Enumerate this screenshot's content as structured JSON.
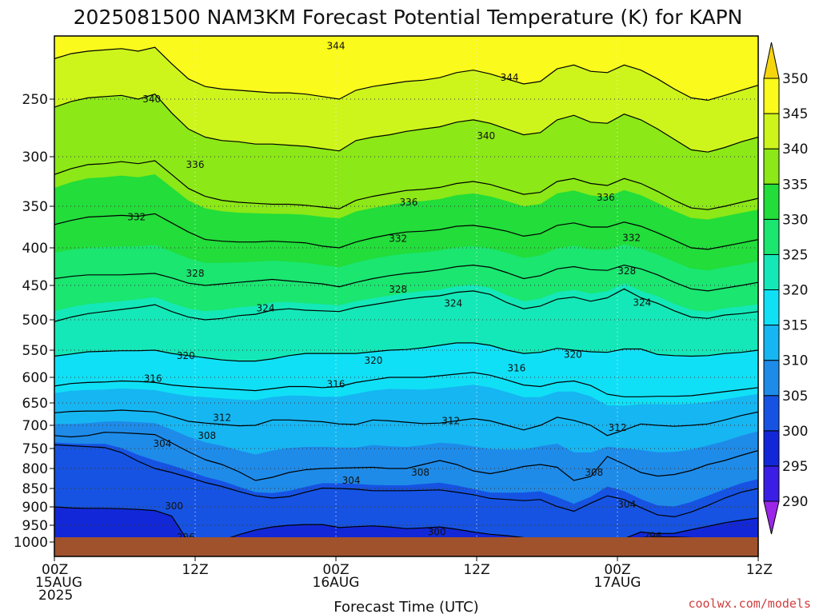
{
  "chart_data": {
    "type": "heatmap",
    "title": "2025081500 NAM3KM Forecast Potential Temperature (K) for KAPN",
    "xlabel": "Forecast Time (UTC)",
    "ylabel": "",
    "y_axis": "pressure (hPa), inverted",
    "ylim": [
      1000,
      200
    ],
    "xlim_hours": [
      0,
      60
    ],
    "grid": "dotted",
    "y_ticks": [
      250,
      300,
      350,
      400,
      450,
      500,
      550,
      600,
      650,
      700,
      750,
      800,
      850,
      900,
      950,
      1000
    ],
    "x_ticks": [
      {
        "hour": 0,
        "label": "00Z",
        "sub1": "15AUG",
        "sub2": "2025"
      },
      {
        "hour": 12,
        "label": "12Z",
        "sub1": "",
        "sub2": ""
      },
      {
        "hour": 24,
        "label": "00Z",
        "sub1": "16AUG",
        "sub2": ""
      },
      {
        "hour": 36,
        "label": "12Z",
        "sub1": "",
        "sub2": ""
      },
      {
        "hour": 48,
        "label": "00Z",
        "sub1": "17AUG",
        "sub2": ""
      },
      {
        "hour": 60,
        "label": "12Z",
        "sub1": "",
        "sub2": ""
      }
    ],
    "colorbar": {
      "levels": [
        290,
        295,
        300,
        305,
        310,
        315,
        320,
        325,
        330,
        335,
        340,
        345,
        350
      ],
      "colors": [
        "#9b26e8",
        "#3a1ee6",
        "#1228d8",
        "#1653e3",
        "#1e8be9",
        "#16b6f2",
        "#10e0f6",
        "#14e8b8",
        "#1ae670",
        "#22dd3a",
        "#8ce816",
        "#cdf51c",
        "#fafa1c",
        "#f5d60e"
      ]
    },
    "ground_color": "#a0522d",
    "isentropes": [
      {
        "theta": 296,
        "p": [
          990,
          991,
          990,
          990,
          993,
          996,
          1000,
          1000,
          996,
          993,
          992,
          995,
          994,
          1000,
          1000,
          1000,
          1000,
          1000,
          1000,
          1000,
          1000,
          1000,
          1000,
          1000,
          1000,
          1000,
          1000,
          1000,
          1000,
          1000,
          1000,
          1000,
          1000,
          1000,
          992,
          987,
          985,
          985,
          987,
          989,
          990,
          990,
          990
        ]
      },
      {
        "theta": 300,
        "p": [
          900,
          903,
          904,
          904,
          905,
          907,
          910,
          925,
          1000,
          1000,
          995,
          978,
          964,
          955,
          950,
          948,
          948,
          957,
          954,
          952,
          955,
          960,
          958,
          955,
          962,
          970,
          977,
          981,
          987,
          1000,
          1000,
          1000,
          1000,
          1000,
          990,
          970,
          975,
          974,
          963,
          953,
          943,
          936,
          930
        ]
      },
      {
        "theta": 304,
        "p": [
          742,
          744,
          746,
          748,
          760,
          782,
          800,
          810,
          822,
          835,
          845,
          858,
          870,
          876,
          872,
          860,
          849,
          850,
          852,
          856,
          856,
          856,
          855,
          854,
          860,
          867,
          877,
          880,
          883,
          880,
          899,
          912,
          890,
          870,
          880,
          902,
          922,
          927,
          914,
          896,
          876,
          860,
          850
        ]
      },
      {
        "theta": 308,
        "p": [
          722,
          725,
          722,
          715,
          716,
          718,
          720,
          738,
          758,
          778,
          790,
          808,
          830,
          822,
          810,
          803,
          800,
          799,
          798,
          797,
          800,
          800,
          790,
          780,
          790,
          806,
          813,
          805,
          795,
          790,
          797,
          830,
          820,
          770,
          789,
          810,
          819,
          815,
          805,
          790,
          780,
          767,
          755
        ]
      },
      {
        "theta": 312,
        "p": [
          672,
          669,
          668,
          668,
          666,
          668,
          670,
          680,
          691,
          695,
          698,
          701,
          700,
          688,
          688,
          690,
          692,
          697,
          698,
          688,
          690,
          693,
          696,
          695,
          690,
          685,
          690,
          700,
          710,
          700,
          682,
          689,
          700,
          722,
          710,
          697,
          700,
          702,
          700,
          697,
          688,
          678,
          670
        ]
      },
      {
        "theta": 316,
        "p": [
          617,
          612,
          610,
          609,
          607,
          608,
          610,
          615,
          618,
          620,
          622,
          624,
          626,
          622,
          618,
          618,
          620,
          618,
          610,
          605,
          600,
          600,
          600,
          597,
          594,
          591,
          596,
          605,
          615,
          618,
          610,
          607,
          616,
          633,
          638,
          638,
          637,
          637,
          636,
          632,
          628,
          624,
          620
        ]
      },
      {
        "theta": 320,
        "p": [
          561,
          557,
          553,
          552,
          551,
          551,
          550,
          556,
          560,
          564,
          568,
          570,
          570,
          566,
          560,
          556,
          556,
          556,
          556,
          553,
          550,
          549,
          546,
          542,
          538,
          538,
          542,
          550,
          556,
          554,
          547,
          550,
          553,
          554,
          548,
          548,
          558,
          560,
          561,
          560,
          556,
          554,
          550
        ]
      },
      {
        "theta": 324,
        "p": [
          503,
          496,
          491,
          488,
          485,
          482,
          478,
          488,
          496,
          500,
          498,
          494,
          492,
          486,
          484,
          486,
          487,
          488,
          482,
          478,
          474,
          470,
          467,
          465,
          460,
          458,
          463,
          475,
          484,
          480,
          470,
          467,
          473,
          468,
          455,
          468,
          476,
          487,
          496,
          498,
          493,
          491,
          488
        ]
      },
      {
        "theta": 328,
        "p": [
          441,
          438,
          436,
          436,
          436,
          435,
          434,
          440,
          447,
          450,
          448,
          446,
          444,
          442,
          444,
          446,
          448,
          452,
          446,
          441,
          437,
          434,
          432,
          429,
          425,
          423,
          426,
          433,
          441,
          437,
          428,
          425,
          429,
          430,
          423,
          428,
          436,
          446,
          455,
          458,
          454,
          450,
          446
        ]
      },
      {
        "theta": 332,
        "p": [
          372,
          367,
          363,
          362,
          361,
          362,
          359,
          370,
          381,
          390,
          392,
          393,
          393,
          392,
          393,
          394,
          398,
          400,
          393,
          388,
          384,
          381,
          380,
          378,
          374,
          373,
          376,
          380,
          386,
          383,
          373,
          370,
          375,
          375,
          369,
          374,
          382,
          391,
          400,
          402,
          398,
          394,
          390
        ]
      },
      {
        "theta": 336,
        "p": [
          318,
          312,
          308,
          307,
          305,
          307,
          304,
          318,
          332,
          340,
          344,
          346,
          347,
          348,
          348,
          349,
          351,
          353,
          344,
          340,
          337,
          334,
          333,
          331,
          327,
          325,
          328,
          333,
          338,
          336,
          325,
          322,
          327,
          329,
          322,
          327,
          335,
          344,
          352,
          354,
          350,
          346,
          342
        ]
      },
      {
        "theta": 340,
        "p": [
          257,
          252,
          249,
          248,
          247,
          250,
          246,
          262,
          276,
          283,
          286,
          287,
          289,
          289,
          290,
          291,
          293,
          295,
          286,
          283,
          281,
          278,
          276,
          274,
          270,
          268,
          271,
          276,
          281,
          279,
          268,
          264,
          270,
          271,
          263,
          268,
          276,
          285,
          294,
          296,
          292,
          287,
          283
        ]
      },
      {
        "theta": 344,
        "p": [
          218,
          214,
          212,
          211,
          210,
          212,
          209,
          222,
          234,
          240,
          242,
          243,
          244,
          245,
          245,
          246,
          248,
          250,
          243,
          240,
          238,
          236,
          235,
          233,
          229,
          227,
          230,
          234,
          238,
          236,
          226,
          223,
          228,
          229,
          223,
          227,
          234,
          242,
          249,
          251,
          247,
          243,
          239
        ]
      }
    ],
    "contour_labels": [
      {
        "text": "344",
        "hour": 24.0,
        "p": 208
      },
      {
        "text": "344",
        "hour": 38.8,
        "p": 233
      },
      {
        "text": "340",
        "hour": 8.3,
        "p": 250
      },
      {
        "text": "340",
        "hour": 36.8,
        "p": 282
      },
      {
        "text": "336",
        "hour": 12.0,
        "p": 308
      },
      {
        "text": "336",
        "hour": 30.2,
        "p": 346
      },
      {
        "text": "336",
        "hour": 47.0,
        "p": 341
      },
      {
        "text": "332",
        "hour": 7.0,
        "p": 363
      },
      {
        "text": "332",
        "hour": 29.3,
        "p": 389
      },
      {
        "text": "332",
        "hour": 49.2,
        "p": 388
      },
      {
        "text": "328",
        "hour": 12.0,
        "p": 434
      },
      {
        "text": "328",
        "hour": 29.3,
        "p": 456
      },
      {
        "text": "328",
        "hour": 48.8,
        "p": 431
      },
      {
        "text": "324",
        "hour": 18.0,
        "p": 483
      },
      {
        "text": "324",
        "hour": 34.0,
        "p": 476
      },
      {
        "text": "324",
        "hour": 50.1,
        "p": 475
      },
      {
        "text": "320",
        "hour": 11.2,
        "p": 560
      },
      {
        "text": "320",
        "hour": 27.2,
        "p": 569
      },
      {
        "text": "320",
        "hour": 44.2,
        "p": 558
      },
      {
        "text": "316",
        "hour": 8.4,
        "p": 602
      },
      {
        "text": "316",
        "hour": 24.0,
        "p": 613
      },
      {
        "text": "316",
        "hour": 39.4,
        "p": 583
      },
      {
        "text": "312",
        "hour": 14.3,
        "p": 683
      },
      {
        "text": "312",
        "hour": 33.8,
        "p": 690
      },
      {
        "text": "312",
        "hour": 48.0,
        "p": 705
      },
      {
        "text": "308",
        "hour": 13.0,
        "p": 722
      },
      {
        "text": "308",
        "hour": 31.2,
        "p": 810
      },
      {
        "text": "308",
        "hour": 46.0,
        "p": 810
      },
      {
        "text": "304",
        "hour": 9.2,
        "p": 740
      },
      {
        "text": "304",
        "hour": 25.3,
        "p": 830
      },
      {
        "text": "304",
        "hour": 48.8,
        "p": 893
      },
      {
        "text": "300",
        "hour": 10.2,
        "p": 898
      },
      {
        "text": "300",
        "hour": 32.6,
        "p": 970
      },
      {
        "text": "296",
        "hour": 11.2,
        "p": 986
      },
      {
        "text": "296",
        "hour": 51.0,
        "p": 982
      }
    ]
  },
  "credit": "coolwx.com/models"
}
